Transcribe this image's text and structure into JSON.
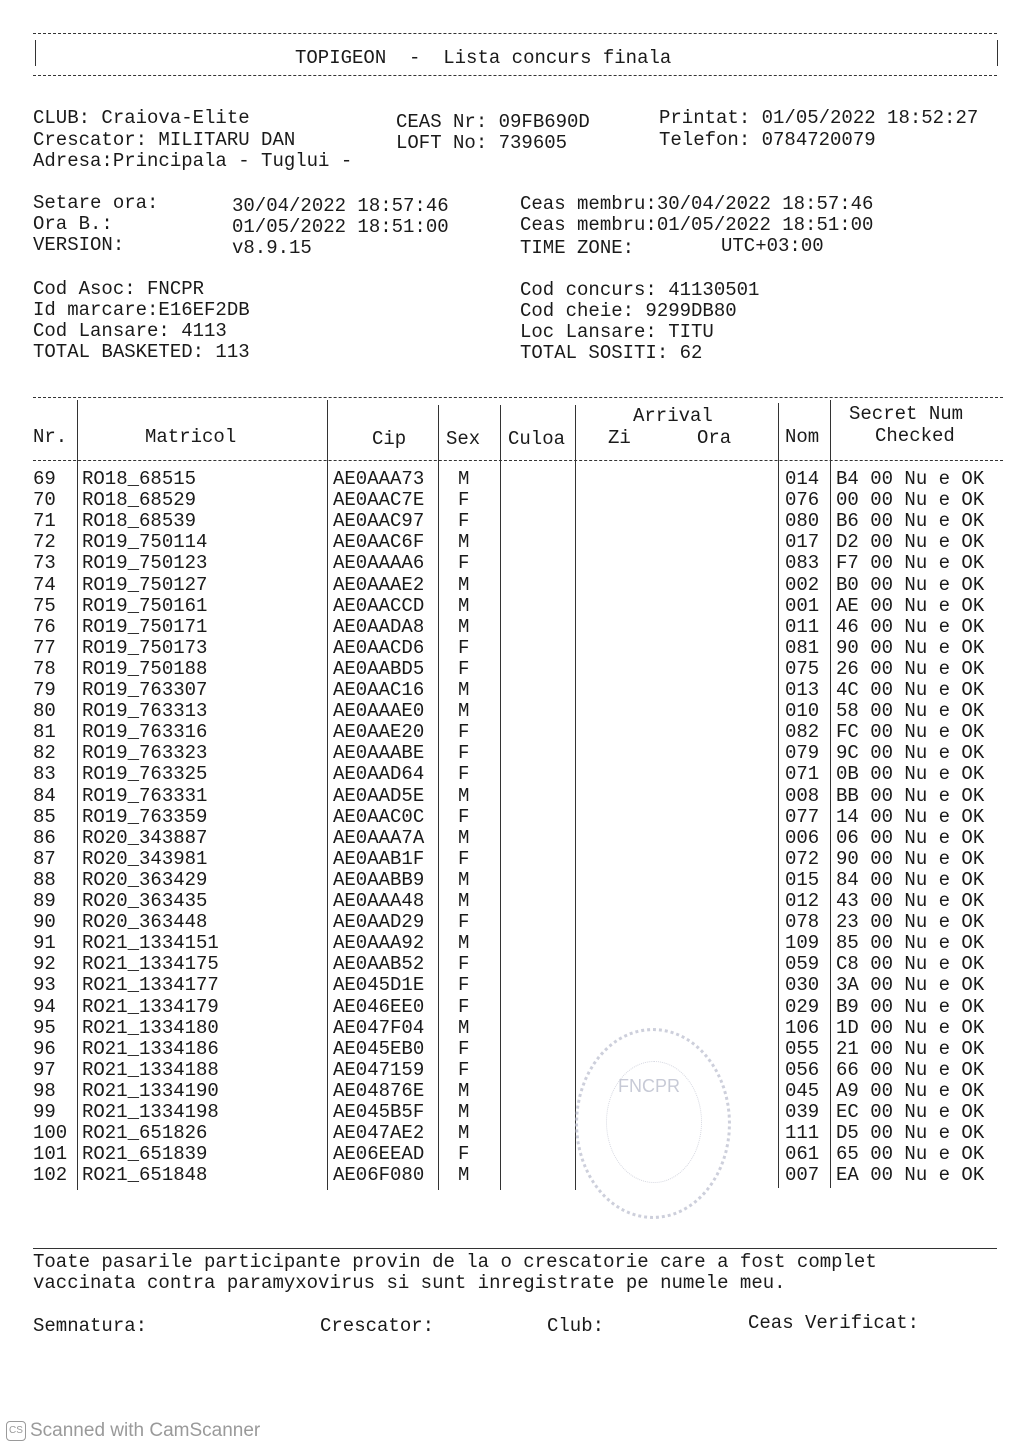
{
  "title": {
    "app": "TOPIGEON",
    "sep": "-",
    "name": "Lista concurs finala"
  },
  "info": {
    "club": "CLUB: Craiova-Elite",
    "crescator": "Crescator: MILITARU DAN",
    "adresa": "Adresa:Principala - Tuglui -",
    "ceas_nr": "CEAS Nr: 09FB690D",
    "loft_no": "LOFT No: 739605",
    "printat": "Printat: 01/05/2022 18:52:27",
    "telefon": "Telefon: 0784720079",
    "setare_label": "Setare ora:",
    "setare_value": "30/04/2022 18:57:46",
    "ora_b_label": "Ora B.:",
    "ora_b_value": "01/05/2022 18:51:00",
    "version_label": "VERSION:",
    "version_value": "v8.9.15",
    "ceas_membru_1": "Ceas membru:30/04/2022 18:57:46",
    "ceas_membru_2": "Ceas membru:01/05/2022 18:51:00",
    "time_zone_label": "TIME ZONE:",
    "time_zone_value": "UTC+03:00",
    "cod_asoc": "Cod Asoc: FNCPR",
    "id_marcare": "Id marcare:E16EF2DB",
    "cod_lansare": "Cod Lansare: 4113",
    "total_basketed": "TOTAL BASKETED: 113",
    "cod_concurs": "Cod concurs: 41130501",
    "cod_cheie": "Cod cheie: 9299DB80",
    "loc_lansare": "Loc Lansare: TITU",
    "total_sositi": "TOTAL SOSITI: 62"
  },
  "table": {
    "headers": {
      "nr": "Nr.",
      "matricol": "Matricol",
      "cip": "Cip",
      "sex": "Sex",
      "culoa": "Culoa",
      "arrival": "Arrival",
      "zi": "Zi",
      "ora": "Ora",
      "nom": "Nom",
      "secret_num": "Secret Num",
      "checked": "Checked"
    },
    "rows": [
      {
        "nr": "69",
        "matricol": "RO18_68515",
        "cip": "AE0AAA73",
        "sex": "M",
        "nom": "014",
        "secret": "B4 00 Nu e OK"
      },
      {
        "nr": "70",
        "matricol": "RO18_68529",
        "cip": "AE0AAC7E",
        "sex": "F",
        "nom": "076",
        "secret": "00 00 Nu e OK"
      },
      {
        "nr": "71",
        "matricol": "RO18_68539",
        "cip": "AE0AAC97",
        "sex": "F",
        "nom": "080",
        "secret": "B6 00 Nu e OK"
      },
      {
        "nr": "72",
        "matricol": "RO19_750114",
        "cip": "AE0AAC6F",
        "sex": "M",
        "nom": "017",
        "secret": "D2 00 Nu e OK"
      },
      {
        "nr": "73",
        "matricol": "RO19_750123",
        "cip": "AE0AAAA6",
        "sex": "F",
        "nom": "083",
        "secret": "F7 00 Nu e OK"
      },
      {
        "nr": "74",
        "matricol": "RO19_750127",
        "cip": "AE0AAAE2",
        "sex": "M",
        "nom": "002",
        "secret": "B0 00 Nu e OK"
      },
      {
        "nr": "75",
        "matricol": "RO19_750161",
        "cip": "AE0AACCD",
        "sex": "M",
        "nom": "001",
        "secret": "AE 00 Nu e OK"
      },
      {
        "nr": "76",
        "matricol": "RO19_750171",
        "cip": "AE0AADA8",
        "sex": "M",
        "nom": "011",
        "secret": "46 00 Nu e OK"
      },
      {
        "nr": "77",
        "matricol": "RO19_750173",
        "cip": "AE0AACD6",
        "sex": "F",
        "nom": "081",
        "secret": "90 00 Nu e OK"
      },
      {
        "nr": "78",
        "matricol": "RO19_750188",
        "cip": "AE0AABD5",
        "sex": "F",
        "nom": "075",
        "secret": "26 00 Nu e OK"
      },
      {
        "nr": "79",
        "matricol": "RO19_763307",
        "cip": "AE0AAC16",
        "sex": "M",
        "nom": "013",
        "secret": "4C 00 Nu e OK"
      },
      {
        "nr": "80",
        "matricol": "RO19_763313",
        "cip": "AE0AAAE0",
        "sex": "M",
        "nom": "010",
        "secret": "58 00 Nu e OK"
      },
      {
        "nr": "81",
        "matricol": "RO19_763316",
        "cip": "AE0AAE20",
        "sex": "F",
        "nom": "082",
        "secret": "FC 00 Nu e OK"
      },
      {
        "nr": "82",
        "matricol": "RO19_763323",
        "cip": "AE0AAABE",
        "sex": "F",
        "nom": "079",
        "secret": "9C 00 Nu e OK"
      },
      {
        "nr": "83",
        "matricol": "RO19_763325",
        "cip": "AE0AAD64",
        "sex": "F",
        "nom": "071",
        "secret": "0B 00 Nu e OK"
      },
      {
        "nr": "84",
        "matricol": "RO19_763331",
        "cip": "AE0AAD5E",
        "sex": "M",
        "nom": "008",
        "secret": "BB 00 Nu e OK"
      },
      {
        "nr": "85",
        "matricol": "RO19_763359",
        "cip": "AE0AAC0C",
        "sex": "F",
        "nom": "077",
        "secret": "14 00 Nu e OK"
      },
      {
        "nr": "86",
        "matricol": "RO20_343887",
        "cip": "AE0AAA7A",
        "sex": "M",
        "nom": "006",
        "secret": "06 00 Nu e OK"
      },
      {
        "nr": "87",
        "matricol": "RO20_343981",
        "cip": "AE0AAB1F",
        "sex": "F",
        "nom": "072",
        "secret": "90 00 Nu e OK"
      },
      {
        "nr": "88",
        "matricol": "RO20_363429",
        "cip": "AE0AABB9",
        "sex": "M",
        "nom": "015",
        "secret": "84 00 Nu e OK"
      },
      {
        "nr": "89",
        "matricol": "RO20_363435",
        "cip": "AE0AAA48",
        "sex": "M",
        "nom": "012",
        "secret": "43 00 Nu e OK"
      },
      {
        "nr": "90",
        "matricol": "RO20_363448",
        "cip": "AE0AAD29",
        "sex": "F",
        "nom": "078",
        "secret": "23 00 Nu e OK"
      },
      {
        "nr": "91",
        "matricol": "RO21_1334151",
        "cip": "AE0AAA92",
        "sex": "M",
        "nom": "109",
        "secret": "85 00 Nu e OK"
      },
      {
        "nr": "92",
        "matricol": "RO21_1334175",
        "cip": "AE0AAB52",
        "sex": "F",
        "nom": "059",
        "secret": "C8 00 Nu e OK"
      },
      {
        "nr": "93",
        "matricol": "RO21_1334177",
        "cip": "AE045D1E",
        "sex": "F",
        "nom": "030",
        "secret": "3A 00 Nu e OK"
      },
      {
        "nr": "94",
        "matricol": "RO21_1334179",
        "cip": "AE046EE0",
        "sex": "F",
        "nom": "029",
        "secret": "B9 00 Nu e OK"
      },
      {
        "nr": "95",
        "matricol": "RO21_1334180",
        "cip": "AE047F04",
        "sex": "M",
        "nom": "106",
        "secret": "1D 00 Nu e OK"
      },
      {
        "nr": "96",
        "matricol": "RO21_1334186",
        "cip": "AE045EB0",
        "sex": "F",
        "nom": "055",
        "secret": "21 00 Nu e OK"
      },
      {
        "nr": "97",
        "matricol": "RO21_1334188",
        "cip": "AE047159",
        "sex": "F",
        "nom": "056",
        "secret": "66 00 Nu e OK"
      },
      {
        "nr": "98",
        "matricol": "RO21_1334190",
        "cip": "AE04876E",
        "sex": "M",
        "nom": "045",
        "secret": "A9 00 Nu e OK"
      },
      {
        "nr": "99",
        "matricol": "RO21_1334198",
        "cip": "AE045B5F",
        "sex": "M",
        "nom": "039",
        "secret": "EC 00 Nu e OK"
      },
      {
        "nr": "100",
        "matricol": "RO21_651826",
        "cip": "AE047AE2",
        "sex": "M",
        "nom": "111",
        "secret": "D5 00 Nu e OK"
      },
      {
        "nr": "101",
        "matricol": "RO21_651839",
        "cip": "AE06EEAD",
        "sex": "F",
        "nom": "061",
        "secret": "65 00 Nu e OK"
      },
      {
        "nr": "102",
        "matricol": "RO21_651848",
        "cip": "AE06F080",
        "sex": "M",
        "nom": "007",
        "secret": "EA 00 Nu e OK"
      }
    ]
  },
  "footer": {
    "declaration_1": "Toate pasarile participante provin de la o crescatorie care a fost complet",
    "declaration_2": "vaccinata contra paramyxovirus si sunt inregistrate pe numele meu.",
    "semnatura": "Semnatura:",
    "crescator": "Crescator:",
    "club": "Club:",
    "ceas_verificat": "Ceas Verificat:"
  },
  "stamp": {
    "text": "FNCPR"
  },
  "watermark": {
    "icon": "camscanner-icon",
    "text": "Scanned with CamScanner"
  }
}
